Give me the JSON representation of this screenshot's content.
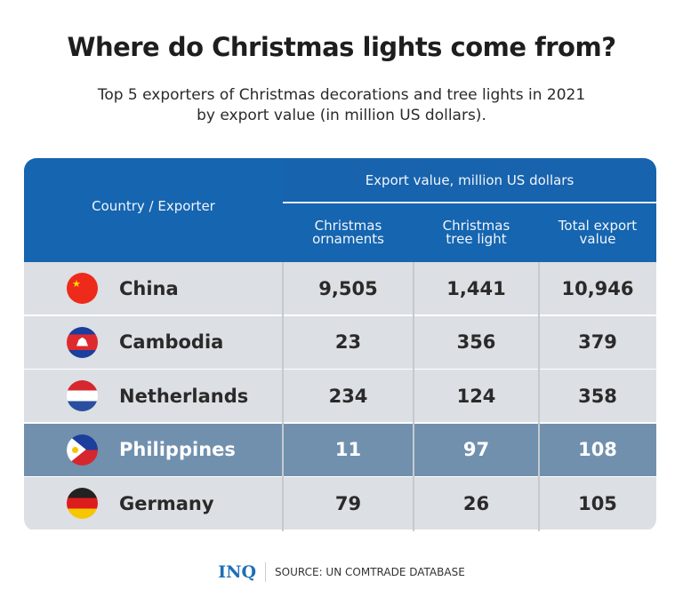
{
  "title": "Where do Christmas lights come from?",
  "subtitle_line1": "Top 5 exporters of Christmas decorations and tree lights in 2021",
  "subtitle_line2": "by export value (in million US dollars).",
  "chart_data": {
    "type": "table",
    "headers": {
      "country": "Country / Exporter",
      "group": "Export value, million US dollars",
      "col1": "Christmas ornaments",
      "col2": "Christmas tree light",
      "col3": "Total export value"
    },
    "rows": [
      {
        "country": "China",
        "ornaments": "9,505",
        "tree_light": "1,441",
        "total": "10,946",
        "highlight": false
      },
      {
        "country": "Cambodia",
        "ornaments": "23",
        "tree_light": "356",
        "total": "379",
        "highlight": false
      },
      {
        "country": "Netherlands",
        "ornaments": "234",
        "tree_light": "124",
        "total": "358",
        "highlight": false
      },
      {
        "country": "Philippines",
        "ornaments": "11",
        "tree_light": "97",
        "total": "108",
        "highlight": true
      },
      {
        "country": "Germany",
        "ornaments": "79",
        "tree_light": "26",
        "total": "105",
        "highlight": false
      }
    ]
  },
  "colors": {
    "header": "#1565b0",
    "row": "#dcdfe3",
    "highlight": "#7190ae"
  },
  "footer": {
    "logo": "INQ",
    "source": "SOURCE: UN COMTRADE DATABASE"
  }
}
